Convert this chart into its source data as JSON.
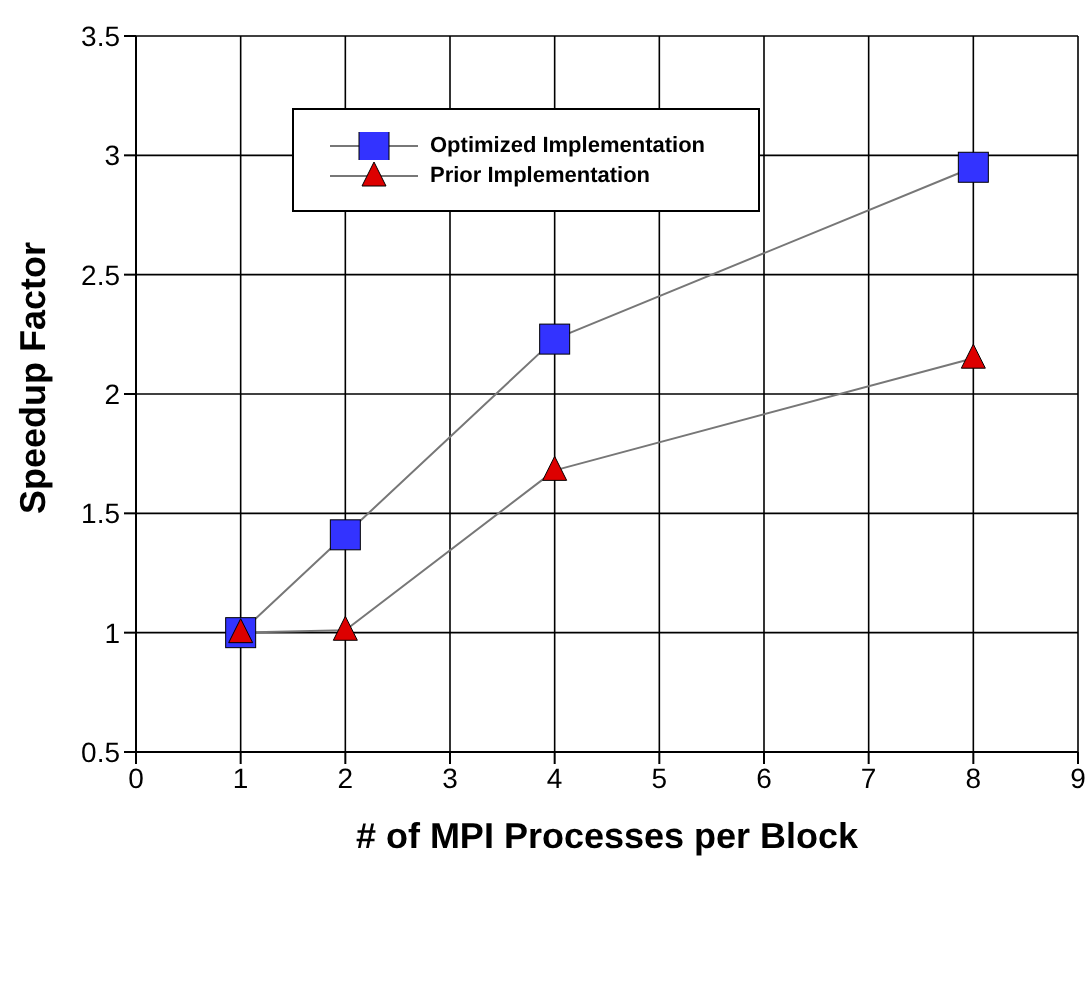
{
  "chart_data": {
    "type": "line",
    "xlabel": "# of MPI Processes per Block",
    "ylabel": "Speedup Factor",
    "x": [
      1,
      2,
      4,
      8
    ],
    "series": [
      {
        "name": "Optimized Implementation",
        "color": "#3333ff",
        "marker": "square",
        "values": [
          1.0,
          1.41,
          2.23,
          2.95
        ]
      },
      {
        "name": "Prior Implementation",
        "color": "#dd0000",
        "marker": "triangle",
        "values": [
          1.0,
          1.01,
          1.68,
          2.15
        ]
      }
    ],
    "xlim": [
      0,
      9
    ],
    "xticks": [
      0,
      1,
      2,
      3,
      4,
      5,
      6,
      7,
      8,
      9
    ],
    "ylim": [
      0.5,
      3.5
    ],
    "yticks": [
      0.5,
      1,
      1.5,
      2,
      2.5,
      3,
      3.5
    ],
    "grid": true,
    "legend": "top left",
    "line_style": "solid"
  }
}
